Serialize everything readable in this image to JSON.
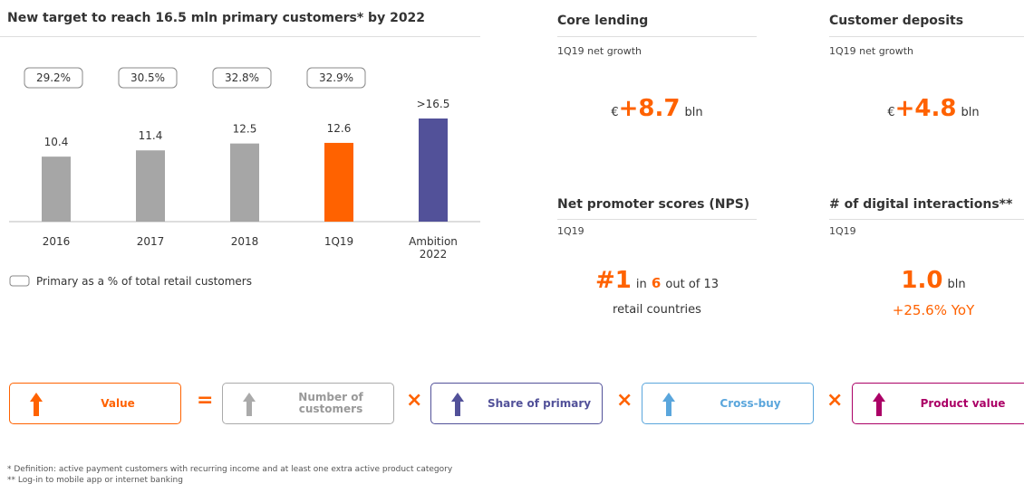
{
  "chart_data": {
    "type": "bar",
    "title": "New target to reach 16.5 mln primary customers* by 2022",
    "categories": [
      "2016",
      "2017",
      "2018",
      "1Q19",
      "Ambition 2022"
    ],
    "values": [
      10.4,
      11.4,
      12.5,
      12.6,
      16.5
    ],
    "value_labels": [
      "10.4",
      "11.4",
      "12.5",
      "12.6",
      ">16.5"
    ],
    "colors": [
      "#a6a6a6",
      "#a6a6a6",
      "#a6a6a6",
      "#ff6200",
      "#525199"
    ],
    "share_labels": [
      "29.2%",
      "30.5%",
      "32.8%",
      "32.9%"
    ],
    "legend": "Primary as a % of total retail customers",
    "ylim": [
      0,
      16.5
    ]
  },
  "kpis": [
    {
      "title": "Core lending",
      "subtitle": "1Q19 net growth",
      "currency": "€",
      "value": "+8.7",
      "unit": "bln"
    },
    {
      "title": "Customer deposits",
      "subtitle": "1Q19 net growth",
      "currency": "€",
      "value": "+4.8",
      "unit": "bln"
    },
    {
      "title": "Net promoter scores (NPS)",
      "subtitle": "1Q19",
      "value": "#1",
      "t1": "in",
      "t2": "6",
      "t3": "out of 13",
      "t4": "retail countries"
    },
    {
      "title": "# of digital interactions**",
      "subtitle": "1Q19",
      "value": "1.0",
      "unit": "bln",
      "growth": "+25.6% YoY"
    }
  ],
  "formula": {
    "terms": [
      "Value",
      "Number of customers",
      "Share of primary",
      "Cross-buy",
      "Product value"
    ],
    "equals": "=",
    "times": "×"
  },
  "footnotes": [
    "* Definition: active payment customers with recurring income and at least one extra active product category",
    "** Log-in to mobile app or internet banking"
  ]
}
